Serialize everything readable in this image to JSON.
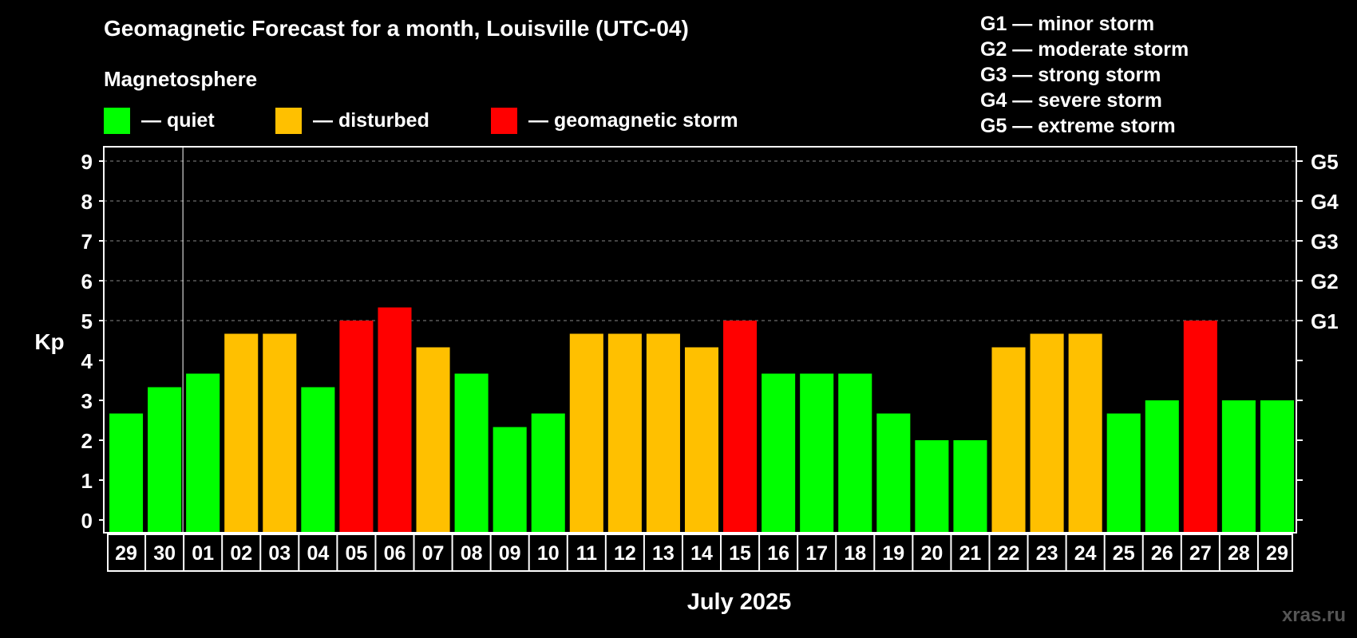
{
  "title": "Geomagnetic Forecast for a month, Louisville (UTC-04)",
  "magnetosphere_label": "Magnetosphere",
  "legend": [
    {
      "label": "— quiet",
      "color": "#00ff00"
    },
    {
      "label": "— disturbed",
      "color": "#ffc000"
    },
    {
      "label": "— geomagnetic storm",
      "color": "#ff0000"
    }
  ],
  "g_levels": [
    "G1 — minor storm",
    "G2 — moderate storm",
    "G3 — strong storm",
    "G4 — severe storm",
    "G5 — extreme storm"
  ],
  "watermark": "xras.ru",
  "chart_data": {
    "type": "bar",
    "ylabel": "Kp",
    "xlabel": "July 2025",
    "ylim": [
      0,
      9
    ],
    "yticks": [
      0,
      1,
      2,
      3,
      4,
      5,
      6,
      7,
      8,
      9
    ],
    "right_axis_labels": [
      {
        "kp": 5,
        "label": "G1"
      },
      {
        "kp": 6,
        "label": "G2"
      },
      {
        "kp": 7,
        "label": "G3"
      },
      {
        "kp": 8,
        "label": "G4"
      },
      {
        "kp": 9,
        "label": "G5"
      }
    ],
    "grid": "dashed horizontal at Kp 5-9",
    "categories": [
      "29",
      "30",
      "01",
      "02",
      "03",
      "04",
      "05",
      "06",
      "07",
      "08",
      "09",
      "10",
      "11",
      "12",
      "13",
      "14",
      "15",
      "16",
      "17",
      "18",
      "19",
      "20",
      "21",
      "22",
      "23",
      "24",
      "25",
      "26",
      "27",
      "28",
      "29"
    ],
    "values": [
      2.67,
      3.33,
      3.67,
      4.67,
      4.67,
      3.33,
      5,
      5.33,
      4.33,
      3.67,
      2.33,
      2.67,
      4.67,
      4.67,
      4.67,
      4.33,
      5,
      3.67,
      3.67,
      3.67,
      2.67,
      2,
      2,
      4.33,
      4.67,
      4.67,
      2.67,
      3,
      5,
      3,
      3
    ],
    "status": [
      "quiet",
      "quiet",
      "quiet",
      "disturbed",
      "disturbed",
      "quiet",
      "storm",
      "storm",
      "disturbed",
      "quiet",
      "quiet",
      "quiet",
      "disturbed",
      "disturbed",
      "disturbed",
      "disturbed",
      "storm",
      "quiet",
      "quiet",
      "quiet",
      "quiet",
      "quiet",
      "quiet",
      "disturbed",
      "disturbed",
      "disturbed",
      "quiet",
      "quiet",
      "storm",
      "quiet",
      "quiet"
    ],
    "status_colors": {
      "quiet": "#00ff00",
      "disturbed": "#ffc000",
      "storm": "#ff0000"
    }
  }
}
